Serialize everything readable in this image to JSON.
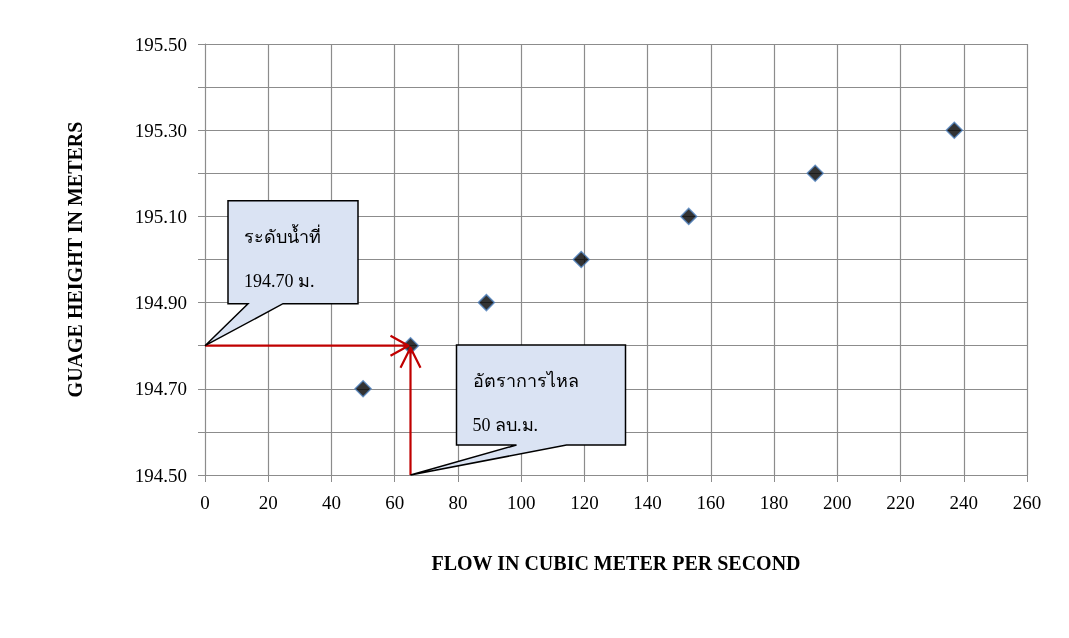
{
  "chart_data": {
    "type": "scatter",
    "xlabel": "FLOW IN CUBIC METER PER SECOND",
    "ylabel": "GUAGE HEIGHT IN METERS",
    "x": [
      50,
      65,
      89,
      119,
      153,
      193,
      237
    ],
    "series": [
      {
        "color": "#000000",
        "values": [
          194.7,
          194.8,
          194.9,
          195.0,
          195.1,
          195.2,
          195.3
        ]
      }
    ],
    "marker": "diamond",
    "xlim": [
      0,
      260
    ],
    "xticks": [
      0,
      20,
      40,
      60,
      80,
      100,
      120,
      140,
      160,
      180,
      200,
      220,
      240,
      260
    ],
    "ylim": [
      194.5,
      195.5
    ],
    "yticks": [
      {
        "value": 194.5,
        "label": "194.50"
      },
      {
        "value": 194.6,
        "label": null
      },
      {
        "value": 194.7,
        "label": "194.70"
      },
      {
        "value": 194.8,
        "label": null
      },
      {
        "value": 194.9,
        "label": "194.90"
      },
      {
        "value": 195.0,
        "label": null
      },
      {
        "value": 195.1,
        "label": "195.10"
      },
      {
        "value": 195.2,
        "label": null
      },
      {
        "value": 195.3,
        "label": "195.30"
      },
      {
        "value": 195.4,
        "label": null
      },
      {
        "value": 195.5,
        "label": "195.50"
      }
    ],
    "grid": true,
    "annotations": [
      "ระดับน้ำที่\n194.70 ม.",
      "อัตราการไหล\n50 ลบ.ม."
    ]
  }
}
